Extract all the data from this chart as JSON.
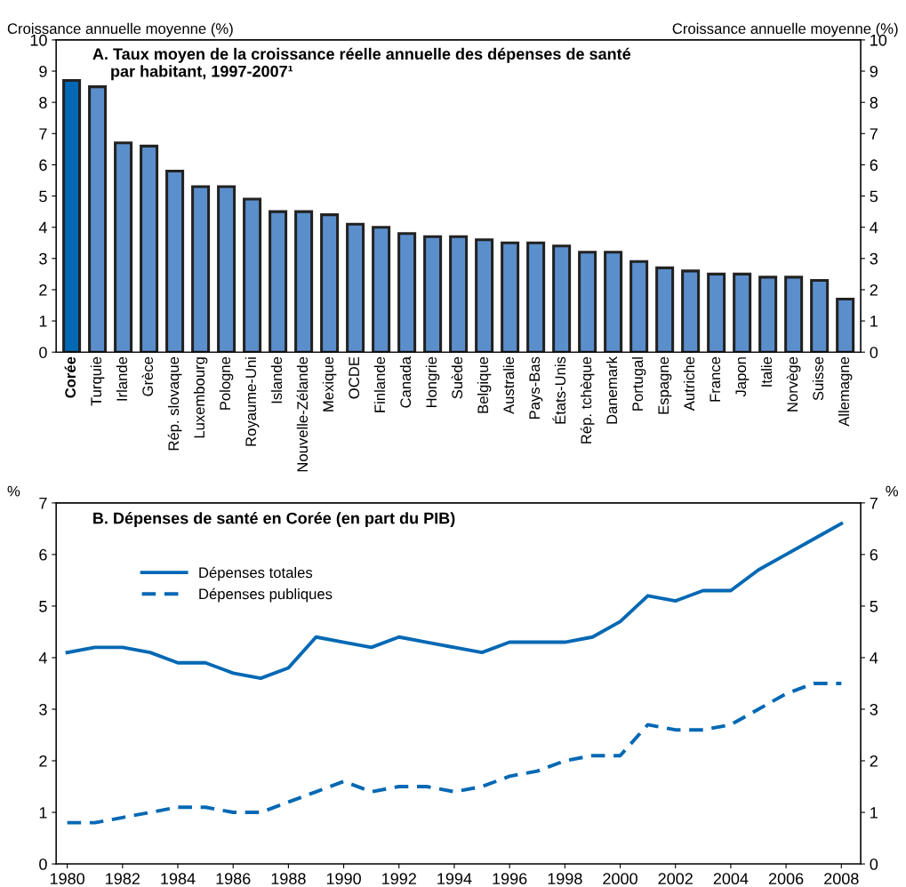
{
  "chart_data": [
    {
      "type": "bar",
      "title": "A. Taux moyen de la croissance réelle annuelle des dépenses de santé\n    par habitant, 1997-2007¹",
      "ylabel": "Croissance annuelle moyenne (%)",
      "y2label": "Croissance annuelle moyenne (%)",
      "categories": [
        "Corée",
        "Turquie",
        "Irlande",
        "Grèce",
        "Rép. slovaque",
        "Luxembourg",
        "Pologne",
        "Royaume-Uni",
        "Islande",
        "Nouvelle-Zélande",
        "Mexique",
        "OCDE",
        "Finlande",
        "Canada",
        "Hongrie",
        "Suède",
        "Belgique",
        "Australie",
        "Pays-Bas",
        "États-Unis",
        "Rép. tchèque",
        "Danemark",
        "Portugal",
        "Espagne",
        "Autriche",
        "France",
        "Japon",
        "Italie",
        "Norvège",
        "Suisse",
        "Allemagne"
      ],
      "values": [
        8.7,
        8.5,
        6.7,
        6.6,
        5.8,
        5.3,
        5.3,
        4.9,
        4.5,
        4.5,
        4.4,
        4.1,
        4.0,
        3.8,
        3.7,
        3.7,
        3.6,
        3.5,
        3.5,
        3.4,
        3.2,
        3.2,
        2.9,
        2.7,
        2.6,
        2.5,
        2.5,
        2.4,
        2.4,
        2.3,
        1.7
      ],
      "colors": [
        "#0068b4",
        "#5b8fcc",
        "#5b8fcc",
        "#5b8fcc",
        "#5b8fcc",
        "#5b8fcc",
        "#5b8fcc",
        "#5b8fcc",
        "#5b8fcc",
        "#5b8fcc",
        "#5b8fcc",
        "#5b8fcc",
        "#5b8fcc",
        "#5b8fcc",
        "#5b8fcc",
        "#5b8fcc",
        "#5b8fcc",
        "#5b8fcc",
        "#5b8fcc",
        "#5b8fcc",
        "#5b8fcc",
        "#5b8fcc",
        "#5b8fcc",
        "#5b8fcc",
        "#5b8fcc",
        "#5b8fcc",
        "#5b8fcc",
        "#5b8fcc",
        "#5b8fcc",
        "#5b8fcc",
        "#5b8fcc"
      ],
      "ylim": [
        0,
        10
      ],
      "yticks": [
        0,
        1,
        2,
        3,
        4,
        5,
        6,
        7,
        8,
        9,
        10
      ],
      "y2lim": [
        0,
        10
      ],
      "y2ticks": [
        0,
        1,
        2,
        3,
        4,
        5,
        6,
        7,
        8,
        9,
        10
      ],
      "grid": false
    },
    {
      "type": "line",
      "title": "B. Dépenses de santé en Corée (en part du PIB)",
      "ylabel": "%",
      "y2label": "%",
      "x": [
        1980,
        1981,
        1982,
        1983,
        1984,
        1985,
        1986,
        1987,
        1988,
        1989,
        1990,
        1991,
        1992,
        1993,
        1994,
        1995,
        1996,
        1997,
        1998,
        1999,
        2000,
        2001,
        2002,
        2003,
        2004,
        2005,
        2006,
        2007,
        2008
      ],
      "series": [
        {
          "name": "Dépenses totales",
          "color": "#0068b4",
          "line_style": "solid",
          "values": [
            4.1,
            4.2,
            4.2,
            4.1,
            3.9,
            3.9,
            3.7,
            3.6,
            3.8,
            4.4,
            4.3,
            4.2,
            4.4,
            4.3,
            4.2,
            4.1,
            4.3,
            4.3,
            4.3,
            4.4,
            4.7,
            5.2,
            5.1,
            5.3,
            5.3,
            5.7,
            6.0,
            6.3,
            6.6
          ]
        },
        {
          "name": "Dépenses publiques",
          "color": "#0068b4",
          "line_style": "dashed",
          "values": [
            0.8,
            0.8,
            0.9,
            1.0,
            1.1,
            1.1,
            1.0,
            1.0,
            1.2,
            1.4,
            1.6,
            1.4,
            1.5,
            1.5,
            1.4,
            1.5,
            1.7,
            1.8,
            2.0,
            2.1,
            2.1,
            2.7,
            2.6,
            2.6,
            2.7,
            3.0,
            3.3,
            3.5,
            3.5
          ]
        }
      ],
      "xlim": [
        1979.6,
        2008.7
      ],
      "xticks": [
        1980,
        1982,
        1984,
        1986,
        1988,
        1990,
        1992,
        1994,
        1996,
        1998,
        2000,
        2002,
        2004,
        2006,
        2008
      ],
      "ylim": [
        0,
        7
      ],
      "yticks": [
        0,
        1,
        2,
        3,
        4,
        5,
        6,
        7
      ],
      "y2lim": [
        0,
        7
      ],
      "y2ticks": [
        0,
        1,
        2,
        3,
        4,
        5,
        6,
        7
      ],
      "grid": false,
      "legend": "top left",
      "marker": "none"
    }
  ]
}
